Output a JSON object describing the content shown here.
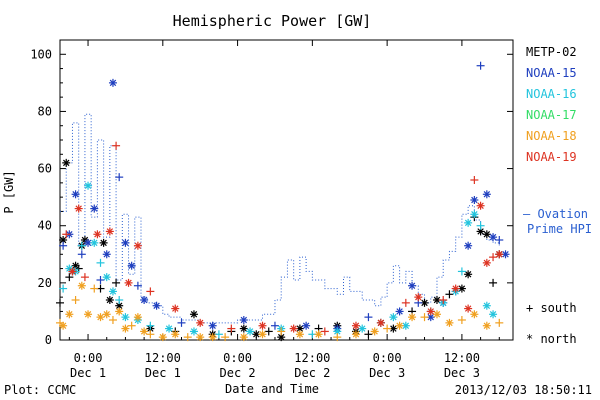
{
  "chart_data": {
    "type": "scatter",
    "title": "Hemispheric Power [GW]",
    "ylabel": "P [GW]",
    "xlabel": "Date and Time",
    "ylim": [
      0,
      105
    ],
    "yticks": [
      0,
      20,
      40,
      60,
      80,
      100
    ],
    "x_range_hours": [
      -4.5,
      20.2
    ],
    "xticks": [
      {
        "h": 0,
        "time": "0:00",
        "date": "Dec 1"
      },
      {
        "h": 12,
        "time": "12:00",
        "date": "Dec 1"
      },
      {
        "h": 24,
        "time": "0:00",
        "date": "Dec 2"
      },
      {
        "h": 36,
        "time": "12:00",
        "date": "Dec 2"
      },
      {
        "h": 48,
        "time": "0:00",
        "date": "Dec 3"
      },
      {
        "h": 60,
        "time": "12:00",
        "date": "Dec 3"
      }
    ],
    "series": [
      {
        "name": "METP-02",
        "color": "#000000",
        "points": [
          [
            -4.5,
            13
          ],
          [
            -4,
            35
          ],
          [
            -3.5,
            62
          ],
          [
            -3,
            22
          ],
          [
            -2.5,
            24
          ],
          [
            -2,
            26
          ],
          [
            -1.5,
            25
          ],
          [
            -1,
            33
          ],
          [
            -0.5,
            35
          ],
          [
            2,
            18
          ],
          [
            2.5,
            34
          ],
          [
            3.5,
            14
          ],
          [
            4.5,
            20
          ],
          [
            5,
            12
          ],
          [
            10,
            4
          ],
          [
            14,
            3
          ],
          [
            17,
            9
          ],
          [
            20,
            2
          ],
          [
            23,
            3
          ],
          [
            25,
            4
          ],
          [
            27,
            2
          ],
          [
            29,
            3
          ],
          [
            31,
            1
          ],
          [
            34,
            4
          ],
          [
            37,
            4
          ],
          [
            40,
            5
          ],
          [
            43,
            3
          ],
          [
            45,
            2
          ],
          [
            47,
            6
          ],
          [
            49,
            4
          ],
          [
            52,
            10
          ],
          [
            54,
            13
          ],
          [
            56,
            14
          ],
          [
            58,
            16
          ],
          [
            60,
            18
          ],
          [
            61,
            23
          ],
          [
            62,
            43
          ],
          [
            63,
            38
          ],
          [
            64,
            37
          ],
          [
            65,
            20
          ],
          [
            66,
            30
          ]
        ]
      },
      {
        "name": "NOAA-15",
        "color": "#1f3fbf",
        "points": [
          [
            -4,
            33
          ],
          [
            -3,
            37
          ],
          [
            -2,
            51
          ],
          [
            -1,
            30
          ],
          [
            0,
            34
          ],
          [
            1,
            46
          ],
          [
            2,
            21
          ],
          [
            3,
            30
          ],
          [
            4,
            90
          ],
          [
            5,
            57
          ],
          [
            6,
            34
          ],
          [
            7,
            26
          ],
          [
            8,
            19
          ],
          [
            9,
            14
          ],
          [
            11,
            12
          ],
          [
            15,
            6
          ],
          [
            20,
            5
          ],
          [
            25,
            7
          ],
          [
            30,
            5
          ],
          [
            35,
            5
          ],
          [
            40,
            4
          ],
          [
            45,
            8
          ],
          [
            50,
            10
          ],
          [
            52,
            19
          ],
          [
            53,
            13
          ],
          [
            55,
            8
          ],
          [
            57,
            13
          ],
          [
            59,
            17
          ],
          [
            61,
            33
          ],
          [
            62,
            49
          ],
          [
            63,
            96
          ],
          [
            64,
            51
          ],
          [
            65,
            36
          ],
          [
            66,
            35
          ],
          [
            67,
            30
          ]
        ]
      },
      {
        "name": "NOAA-16",
        "color": "#22c4dd",
        "points": [
          [
            -4,
            18
          ],
          [
            -3,
            25
          ],
          [
            -2,
            24
          ],
          [
            -1,
            33
          ],
          [
            0,
            54
          ],
          [
            1,
            34
          ],
          [
            2,
            27
          ],
          [
            3,
            22
          ],
          [
            4,
            17
          ],
          [
            5,
            14
          ],
          [
            6,
            8
          ],
          [
            8,
            7
          ],
          [
            10,
            5
          ],
          [
            13,
            4
          ],
          [
            17,
            3
          ],
          [
            21,
            2
          ],
          [
            26,
            3
          ],
          [
            31,
            4
          ],
          [
            36,
            2
          ],
          [
            40,
            3
          ],
          [
            44,
            4
          ],
          [
            47,
            6
          ],
          [
            49,
            8
          ],
          [
            51,
            5
          ],
          [
            55,
            10
          ],
          [
            57,
            13
          ],
          [
            59,
            17
          ],
          [
            60,
            24
          ],
          [
            61,
            41
          ],
          [
            62,
            44
          ],
          [
            63,
            40
          ],
          [
            64,
            12
          ],
          [
            65,
            9
          ]
        ]
      },
      {
        "name": "NOAA-17",
        "color": "#33dd66",
        "points": []
      },
      {
        "name": "NOAA-18",
        "color": "#f0a020",
        "points": [
          [
            -4.5,
            6
          ],
          [
            -4,
            5
          ],
          [
            -3,
            9
          ],
          [
            -2,
            14
          ],
          [
            -1,
            19
          ],
          [
            0,
            9
          ],
          [
            1,
            18
          ],
          [
            2,
            8
          ],
          [
            3,
            9
          ],
          [
            4,
            7
          ],
          [
            5,
            10
          ],
          [
            6,
            4
          ],
          [
            7,
            5
          ],
          [
            8,
            8
          ],
          [
            9,
            3
          ],
          [
            10,
            2
          ],
          [
            12,
            1
          ],
          [
            14,
            2
          ],
          [
            16,
            1
          ],
          [
            18,
            1
          ],
          [
            20,
            1
          ],
          [
            22,
            1
          ],
          [
            25,
            1
          ],
          [
            28,
            2
          ],
          [
            31,
            3
          ],
          [
            34,
            2
          ],
          [
            37,
            2
          ],
          [
            40,
            1
          ],
          [
            43,
            2
          ],
          [
            46,
            3
          ],
          [
            48,
            4
          ],
          [
            50,
            5
          ],
          [
            52,
            8
          ],
          [
            54,
            8
          ],
          [
            56,
            9
          ],
          [
            58,
            6
          ],
          [
            60,
            7
          ],
          [
            62,
            9
          ],
          [
            64,
            5
          ],
          [
            66,
            6
          ]
        ]
      },
      {
        "name": "NOAA-19",
        "color": "#dd3322",
        "points": [
          [
            -3.5,
            37
          ],
          [
            -2.5,
            24
          ],
          [
            -1.5,
            46
          ],
          [
            -0.5,
            22
          ],
          [
            1.5,
            37
          ],
          [
            3.5,
            38
          ],
          [
            4.5,
            68
          ],
          [
            6.5,
            20
          ],
          [
            8,
            33
          ],
          [
            10,
            17
          ],
          [
            14,
            11
          ],
          [
            18,
            6
          ],
          [
            23,
            4
          ],
          [
            28,
            5
          ],
          [
            33,
            4
          ],
          [
            38,
            3
          ],
          [
            43,
            5
          ],
          [
            47,
            6
          ],
          [
            51,
            13
          ],
          [
            53,
            15
          ],
          [
            55,
            10
          ],
          [
            57,
            14
          ],
          [
            59,
            18
          ],
          [
            61,
            11
          ],
          [
            62,
            56
          ],
          [
            63,
            47
          ],
          [
            64,
            27
          ],
          [
            65,
            29
          ],
          [
            66,
            30
          ]
        ]
      }
    ],
    "ovation": {
      "name": "Ovation Prime HPI",
      "color": "#2a5fd0",
      "steps": [
        [
          -4.5,
          45
        ],
        [
          -4,
          45
        ],
        [
          -3.5,
          62
        ],
        [
          -3,
          62
        ],
        [
          -2.5,
          76
        ],
        [
          -2,
          76
        ],
        [
          -1.5,
          33
        ],
        [
          -1,
          33
        ],
        [
          -0.5,
          79
        ],
        [
          0,
          79
        ],
        [
          0.5,
          43
        ],
        [
          1,
          43
        ],
        [
          1.5,
          70
        ],
        [
          2,
          70
        ],
        [
          2.5,
          36
        ],
        [
          3,
          36
        ],
        [
          3.5,
          68
        ],
        [
          4,
          68
        ],
        [
          4.5,
          21
        ],
        [
          5,
          21
        ],
        [
          5.5,
          44
        ],
        [
          6,
          44
        ],
        [
          6.5,
          23
        ],
        [
          7,
          23
        ],
        [
          7.5,
          43
        ],
        [
          8,
          43
        ],
        [
          8.5,
          15
        ],
        [
          9,
          15
        ],
        [
          9.5,
          13
        ],
        [
          10,
          13
        ],
        [
          11,
          12
        ],
        [
          12,
          9
        ],
        [
          13,
          8
        ],
        [
          14,
          8
        ],
        [
          15,
          7
        ],
        [
          16,
          7
        ],
        [
          18,
          6
        ],
        [
          20,
          6
        ],
        [
          22,
          6
        ],
        [
          24,
          7
        ],
        [
          26,
          7
        ],
        [
          28,
          9
        ],
        [
          30,
          14
        ],
        [
          31,
          22
        ],
        [
          32,
          28
        ],
        [
          33,
          21
        ],
        [
          34,
          29
        ],
        [
          35,
          24
        ],
        [
          36,
          21
        ],
        [
          38,
          18
        ],
        [
          40,
          16
        ],
        [
          41,
          22
        ],
        [
          42,
          17
        ],
        [
          44,
          14
        ],
        [
          46,
          12
        ],
        [
          47,
          15
        ],
        [
          48,
          20
        ],
        [
          49,
          26
        ],
        [
          50,
          20
        ],
        [
          51,
          24
        ],
        [
          52,
          19
        ],
        [
          53,
          16
        ],
        [
          54,
          13
        ],
        [
          55,
          15
        ],
        [
          56,
          22
        ],
        [
          57,
          28
        ],
        [
          58,
          31
        ],
        [
          59,
          36
        ],
        [
          60,
          44
        ],
        [
          61,
          47
        ],
        [
          62,
          42
        ],
        [
          63,
          37
        ],
        [
          64,
          35
        ],
        [
          65,
          34
        ],
        [
          66,
          33
        ]
      ]
    }
  },
  "legend": {
    "ovation_label": "— Ovation",
    "ovation_label2": "Prime HPI",
    "south_label": "+ south",
    "north_label": "* north"
  },
  "footer": {
    "left": "Plot: CCMC",
    "right": "2013/12/03 18:50:11"
  }
}
